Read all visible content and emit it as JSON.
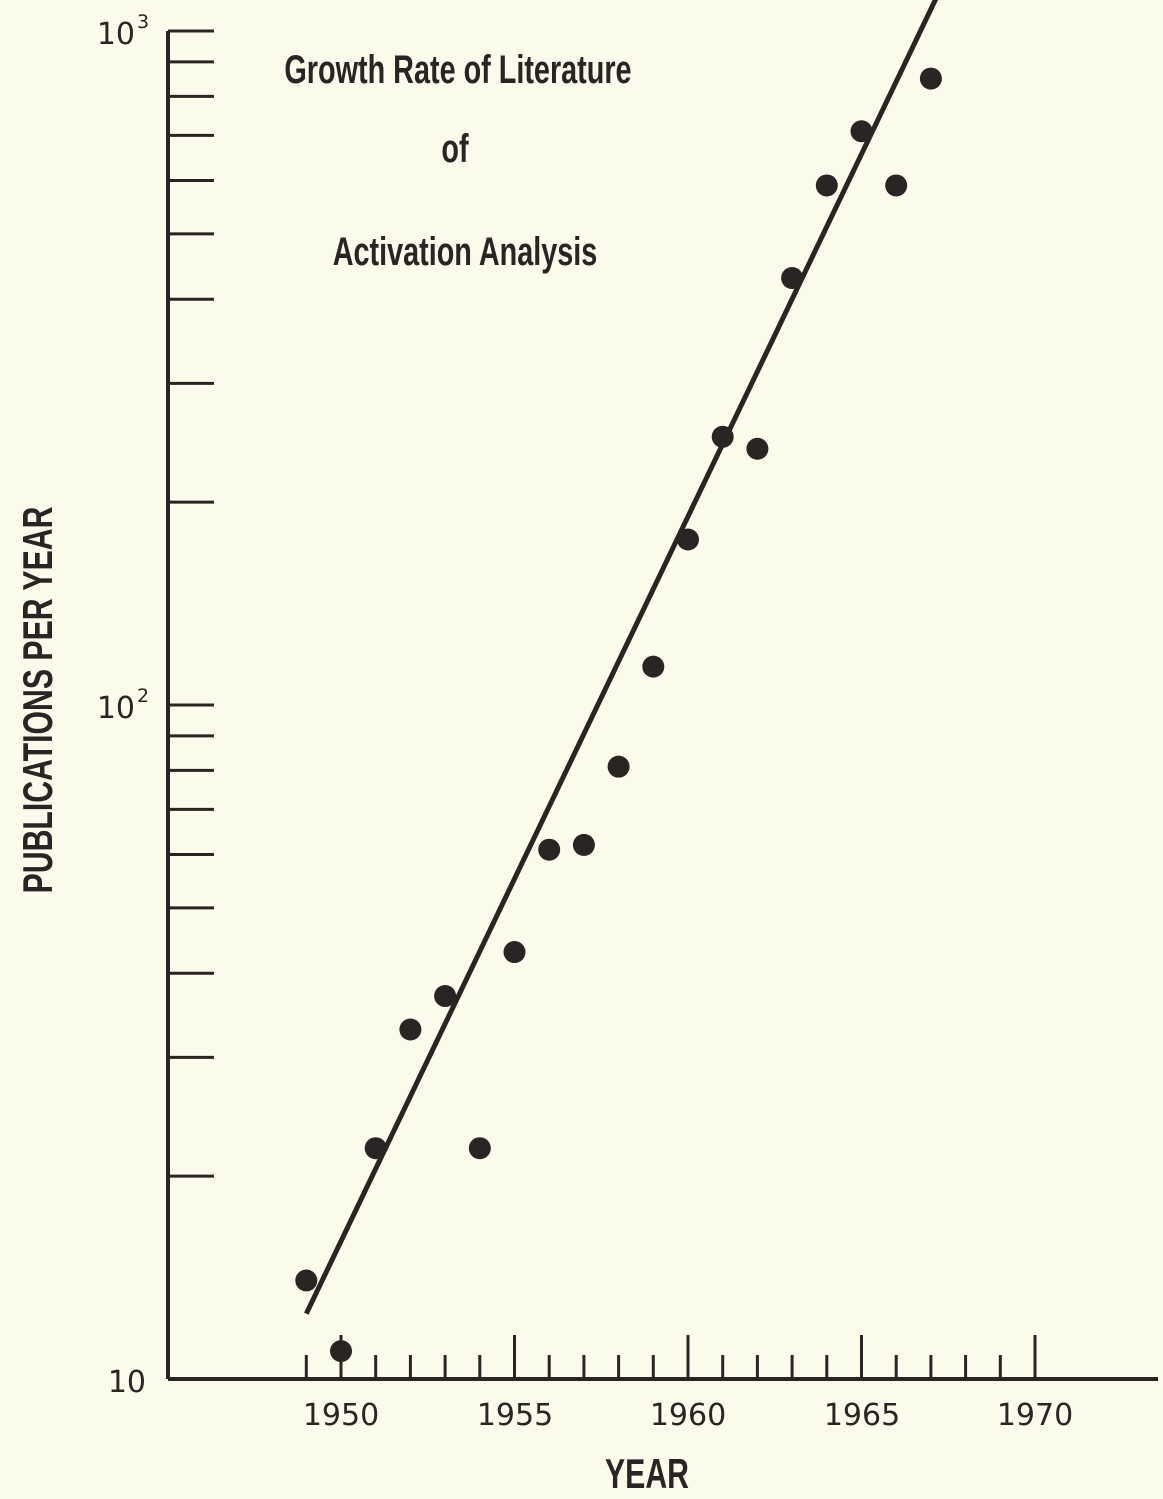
{
  "chart_data": {
    "type": "scatter",
    "title_lines": [
      "Growth Rate of Literature",
      "of",
      "Activation Analysis"
    ],
    "xlabel": "YEAR",
    "ylabel": "PUBLICATIONS PER YEAR",
    "yscale": "log",
    "xlim": [
      1946,
      1973.5
    ],
    "ylim": [
      10,
      1000
    ],
    "x_tick_labels": [
      "1950",
      "1955",
      "1960",
      "1965",
      "1970"
    ],
    "y_tick_labels": [
      {
        "value": 10,
        "base": "10",
        "exp": ""
      },
      {
        "value": 100,
        "base": "10",
        "exp": "2"
      },
      {
        "value": 1000,
        "base": "10",
        "exp": "3"
      }
    ],
    "grid": false,
    "series": [
      {
        "points": [
          {
            "x": 1949,
            "y": 14
          },
          {
            "x": 1950,
            "y": 11
          },
          {
            "x": 1951,
            "y": 22
          },
          {
            "x": 1952,
            "y": 33
          },
          {
            "x": 1953,
            "y": 37
          },
          {
            "x": 1954,
            "y": 22
          },
          {
            "x": 1955,
            "y": 43
          },
          {
            "x": 1956,
            "y": 61
          },
          {
            "x": 1957,
            "y": 62
          },
          {
            "x": 1958,
            "y": 81
          },
          {
            "x": 1959,
            "y": 114
          },
          {
            "x": 1960,
            "y": 176
          },
          {
            "x": 1961,
            "y": 250
          },
          {
            "x": 1962,
            "y": 240
          },
          {
            "x": 1963,
            "y": 430
          },
          {
            "x": 1964,
            "y": 590
          },
          {
            "x": 1965,
            "y": 710
          },
          {
            "x": 1966,
            "y": 590
          },
          {
            "x": 1967,
            "y": 850
          }
        ]
      }
    ],
    "fit_line": {
      "x": [
        1949,
        1967.6
      ],
      "y": [
        12.5,
        1250
      ]
    }
  }
}
